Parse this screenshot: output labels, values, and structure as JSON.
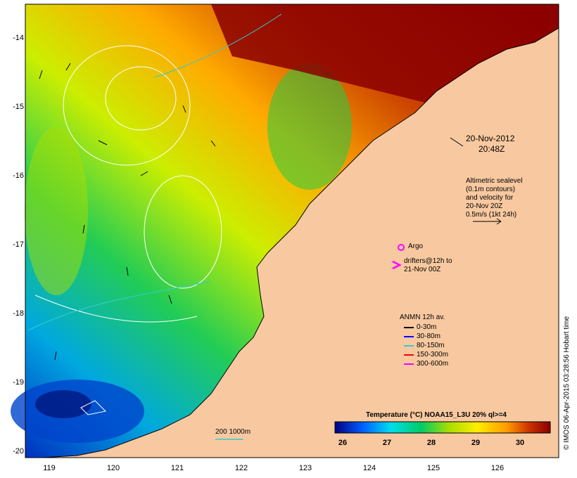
{
  "map": {
    "lon_range": [
      118.6,
      126.7
    ],
    "lat_range": [
      -20.1,
      -13.6
    ],
    "x_ticks": [
      "119",
      "120",
      "121",
      "122",
      "123",
      "124",
      "125",
      "126"
    ],
    "y_ticks": [
      "-14",
      "-15",
      "-16",
      "-17",
      "-18",
      "-19",
      "-20"
    ],
    "colors": {
      "land": "#f8c9a0",
      "coast": "#000000",
      "contour": "#ffffff",
      "isobath": "#33cccc"
    }
  },
  "annotations": {
    "date": "20-Nov-2012",
    "time": "20:48Z",
    "altimetry_lines": [
      "Altimetric sealevel",
      "(0.1m contours)",
      "and velocity for",
      "20-Nov 20Z",
      "0.5m/s (1kt 24h)"
    ],
    "argo": "Argo",
    "drifters_lines": [
      "drifters@12h to",
      "21-Nov 00Z"
    ],
    "isobath": "200 1000m"
  },
  "anmn_legend": {
    "title": "ANMN 12h av.",
    "items": [
      {
        "label": "0-30m",
        "color": "#000000"
      },
      {
        "label": "30-80m",
        "color": "#0000ff"
      },
      {
        "label": "80-150m",
        "color": "#33cccc"
      },
      {
        "label": "150-300m",
        "color": "#ff0000"
      },
      {
        "label": "300-600m",
        "color": "#ff00ff"
      }
    ]
  },
  "colorbar": {
    "title": "Temperature (°C) NOAA15_L3U 20% ql>=4",
    "ticks": [
      "26",
      "27",
      "28",
      "29",
      "30"
    ],
    "colors": [
      "#000080",
      "#0060ff",
      "#00ddee",
      "#00cc66",
      "#aadd00",
      "#ffee00",
      "#ff9900",
      "#cc3300",
      "#8b0000"
    ]
  },
  "credit": "© IMOS 06-Apr-2015 03:28:56 Hobart time"
}
